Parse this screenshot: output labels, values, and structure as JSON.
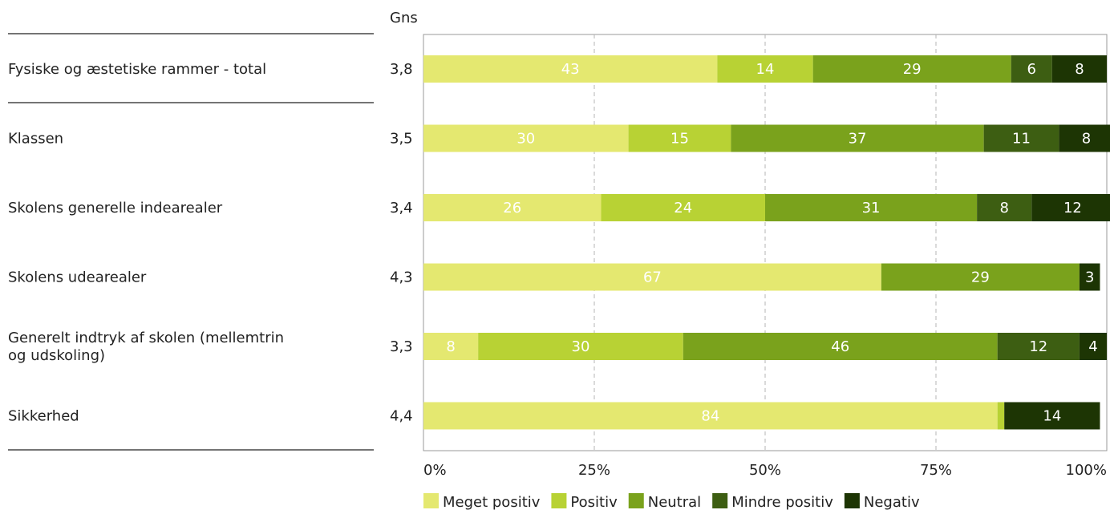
{
  "chart_data": {
    "type": "bar",
    "orientation": "horizontal",
    "stacked": true,
    "column_header": "Gns",
    "categories": [
      "Fysiske og æstetiske rammer - total",
      "Klassen",
      "Skolens generelle indearealer",
      "Skolens udearealer",
      "Generelt indtryk af skolen (mellemtrin og udskoling)",
      "Sikkerhed"
    ],
    "averages": [
      "3,8",
      "3,5",
      "3,4",
      "4,3",
      "3,3",
      "4,4"
    ],
    "series": [
      {
        "name": "Meget positiv",
        "color": "#e4e870",
        "values": [
          43,
          30,
          26,
          67,
          8,
          84
        ]
      },
      {
        "name": "Positiv",
        "color": "#b8d234",
        "values": [
          14,
          15,
          24,
          0,
          30,
          1
        ]
      },
      {
        "name": "Neutral",
        "color": "#7aa21c",
        "values": [
          29,
          37,
          31,
          29,
          46,
          0
        ]
      },
      {
        "name": "Mindre positiv",
        "color": "#3d5e12",
        "values": [
          6,
          11,
          8,
          0,
          12,
          0
        ]
      },
      {
        "name": "Negativ",
        "color": "#1d3504",
        "values": [
          8,
          8,
          12,
          3,
          4,
          14
        ]
      }
    ],
    "xticks": [
      "0%",
      "25%",
      "50%",
      "75%",
      "100%"
    ],
    "xlim": [
      0,
      100
    ],
    "grid": "vertical dashed",
    "legend_position": "bottom"
  }
}
